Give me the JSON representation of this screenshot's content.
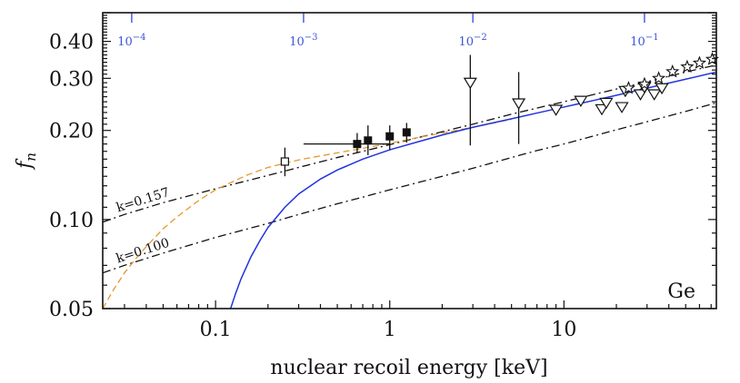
{
  "chart_data": {
    "type": "line",
    "scale": {
      "x": "log",
      "y": "log"
    },
    "xlabel": "nuclear recoil energy [keV]",
    "ylabel": "f",
    "ylabel_subscript": "n",
    "panel_label": "Ge",
    "xlim": [
      0.0225,
      75
    ],
    "ylim": [
      0.05,
      0.5
    ],
    "x_ticks": [
      {
        "value": 0.1,
        "label": "0.1"
      },
      {
        "value": 1,
        "label": "1"
      },
      {
        "value": 10,
        "label": "10"
      }
    ],
    "y_ticks": [
      {
        "value": 0.05,
        "label": "0.05"
      },
      {
        "value": 0.1,
        "label": "0.10"
      },
      {
        "value": 0.2,
        "label": "0.20"
      },
      {
        "value": 0.3,
        "label": "0.30"
      },
      {
        "value": 0.4,
        "label": "0.40"
      }
    ],
    "top_axis": {
      "color": "#3b55d9",
      "ticks": [
        {
          "x": 0.033,
          "base": "10",
          "exp": "−4"
        },
        {
          "x": 0.32,
          "base": "10",
          "exp": "−3"
        },
        {
          "x": 3.0,
          "base": "10",
          "exp": "−2"
        },
        {
          "x": 29,
          "base": "10",
          "exp": "−1"
        }
      ]
    },
    "series": [
      {
        "style": "dash-dot",
        "color": "#111111",
        "label": "k=0.157",
        "label_at": 0.028,
        "x": [
          0.0225,
          0.03,
          0.05,
          0.1,
          0.2,
          0.3,
          0.5,
          0.7,
          1,
          1.5,
          2,
          3,
          5,
          7,
          10,
          15,
          20,
          30,
          50,
          75
        ],
        "y": [
          0.098,
          0.104,
          0.114,
          0.127,
          0.141,
          0.15,
          0.162,
          0.17,
          0.179,
          0.19,
          0.198,
          0.21,
          0.227,
          0.238,
          0.25,
          0.265,
          0.276,
          0.292,
          0.315,
          0.333
        ]
      },
      {
        "style": "dash-dot",
        "color": "#111111",
        "label": "k=0.100",
        "label_at": 0.028,
        "x": [
          0.0225,
          0.03,
          0.05,
          0.1,
          0.2,
          0.3,
          0.5,
          0.7,
          1,
          1.5,
          2,
          3,
          5,
          7,
          10,
          15,
          20,
          30,
          50,
          75
        ],
        "y": [
          0.066,
          0.07,
          0.077,
          0.087,
          0.097,
          0.104,
          0.113,
          0.119,
          0.126,
          0.134,
          0.14,
          0.149,
          0.162,
          0.171,
          0.18,
          0.192,
          0.201,
          0.214,
          0.232,
          0.248
        ]
      },
      {
        "style": "dashed",
        "color": "#e39a2d",
        "x": [
          0.0225,
          0.026,
          0.03,
          0.035,
          0.04,
          0.05,
          0.06,
          0.08,
          0.1,
          0.15,
          0.2,
          0.3,
          0.5,
          0.7,
          1,
          1.5,
          2,
          3,
          5
        ],
        "y": [
          0.05,
          0.058,
          0.066,
          0.074,
          0.081,
          0.093,
          0.102,
          0.116,
          0.126,
          0.141,
          0.15,
          0.159,
          0.168,
          0.174,
          0.181,
          0.19,
          0.196,
          0.205,
          0.218
        ]
      },
      {
        "style": "solid",
        "color": "#2233dd",
        "x": [
          0.122,
          0.13,
          0.14,
          0.16,
          0.18,
          0.2,
          0.25,
          0.3,
          0.4,
          0.5,
          0.7,
          1,
          1.5,
          2,
          3,
          5,
          7,
          10,
          15,
          20,
          30,
          50,
          75
        ],
        "y": [
          0.05,
          0.056,
          0.063,
          0.075,
          0.085,
          0.094,
          0.11,
          0.122,
          0.137,
          0.147,
          0.16,
          0.172,
          0.184,
          0.193,
          0.205,
          0.219,
          0.229,
          0.24,
          0.253,
          0.263,
          0.278,
          0.298,
          0.315
        ]
      }
    ],
    "points": [
      {
        "marker": "open-square",
        "x": 0.25,
        "y": 0.157,
        "y_err": [
          0.14,
          0.175
        ]
      },
      {
        "marker": "filled-square",
        "x": 0.65,
        "y": 0.18,
        "y_err": [
          0.168,
          0.196
        ],
        "x_err": [
          0.32,
          1.0
        ]
      },
      {
        "marker": "filled-square",
        "x": 0.75,
        "y": 0.185,
        "y_err": [
          0.165,
          0.208
        ]
      },
      {
        "marker": "filled-square",
        "x": 1.0,
        "y": 0.191,
        "y_err": [
          0.172,
          0.208
        ]
      },
      {
        "marker": "filled-square",
        "x": 1.25,
        "y": 0.197,
        "y_err": [
          0.182,
          0.212
        ]
      },
      {
        "marker": "open-triangle-down",
        "x": 2.9,
        "y": 0.29,
        "y_err": [
          0.178,
          0.36
        ]
      },
      {
        "marker": "open-triangle-down",
        "x": 5.5,
        "y": 0.247,
        "y_err": [
          0.18,
          0.315
        ]
      },
      {
        "marker": "open-triangle-down",
        "x": 9.0,
        "y": 0.235
      },
      {
        "marker": "open-triangle-down",
        "x": 12.5,
        "y": 0.252
      },
      {
        "marker": "open-triangle-down",
        "x": 16.5,
        "y": 0.236
      },
      {
        "marker": "open-triangle-down",
        "x": 17.5,
        "y": 0.248
      },
      {
        "marker": "open-triangle-down",
        "x": 21.5,
        "y": 0.24
      },
      {
        "marker": "open-triangle-down",
        "x": 22.5,
        "y": 0.272
      },
      {
        "marker": "open-triangle-down",
        "x": 27.5,
        "y": 0.265
      },
      {
        "marker": "open-triangle-down",
        "x": 29.0,
        "y": 0.28
      },
      {
        "marker": "open-triangle-down",
        "x": 33.0,
        "y": 0.265
      },
      {
        "marker": "open-triangle-down",
        "x": 36.5,
        "y": 0.278
      },
      {
        "marker": "open-star",
        "x": 23.5,
        "y": 0.278
      },
      {
        "marker": "open-star",
        "x": 29.0,
        "y": 0.287
      },
      {
        "marker": "open-star",
        "x": 35.0,
        "y": 0.3
      },
      {
        "marker": "open-star",
        "x": 42.0,
        "y": 0.316
      },
      {
        "marker": "open-star",
        "x": 51.0,
        "y": 0.328
      },
      {
        "marker": "open-star",
        "x": 60.0,
        "y": 0.338
      },
      {
        "marker": "open-star",
        "x": 71.0,
        "y": 0.348
      }
    ]
  }
}
